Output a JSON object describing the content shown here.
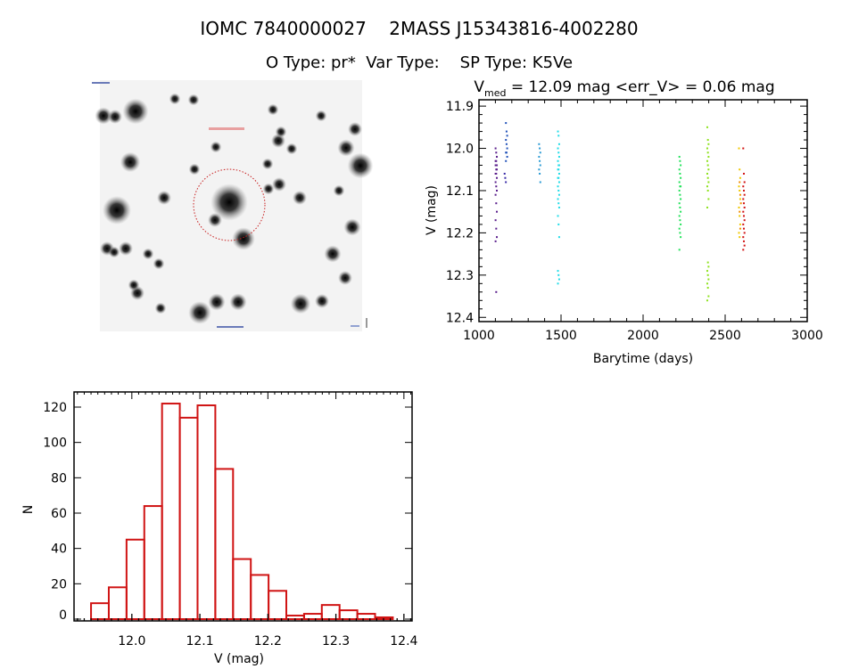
{
  "header": {
    "title": "IOMC 7840000027    2MASS J15343816-4002280",
    "subtitle": "O Type: pr*  Var Type:    SP Type: K5Ve"
  },
  "colors": {
    "histogram": "#d01414",
    "axes": "#000000",
    "image_marker": "#c81e1e"
  },
  "image": {
    "type": "grayscale star field",
    "marker": "dashed red circle around target"
  },
  "chart_data": [
    {
      "type": "scatter",
      "title_main": "V",
      "title_sub": "med",
      "title_rest": " = 12.09 mag <err_V> = 0.06 mag",
      "xlabel": "Barytime (days)",
      "ylabel": "V (mag)",
      "xlim": [
        1000,
        3000
      ],
      "ylim": [
        12.41,
        11.885
      ],
      "y_inverted": true,
      "xticks": [
        "1000",
        "1500",
        "2000",
        "2500",
        "3000"
      ],
      "yticks": [
        "11.9",
        "12.0",
        "12.1",
        "12.2",
        "12.3",
        "12.4"
      ],
      "color_by": "time (rainbow)",
      "groups": [
        {
          "t": 1105,
          "color": "#5a1e8c",
          "v": [
            12.0,
            12.01,
            12.02,
            12.03,
            12.03,
            12.04,
            12.04,
            12.05,
            12.05,
            12.06,
            12.06,
            12.07,
            12.08,
            12.09,
            12.1,
            12.11,
            12.13,
            12.15,
            12.17,
            12.19,
            12.21,
            12.22,
            12.34
          ]
        },
        {
          "t": 1160,
          "color": "#3a2ca8",
          "v": [
            12.06,
            12.07,
            12.08
          ]
        },
        {
          "t": 1168,
          "color": "#1f50b8",
          "v": [
            11.94,
            11.96,
            11.97,
            11.98,
            11.99,
            12.0,
            12.01,
            12.01,
            12.02,
            12.03
          ]
        },
        {
          "t": 1370,
          "color": "#2a9ad4",
          "v": [
            11.99,
            12.0,
            12.01,
            12.02,
            12.03,
            12.04,
            12.05,
            12.06,
            12.08
          ]
        },
        {
          "t": 1485,
          "color": "#22dce8",
          "v": [
            11.96,
            11.97,
            11.99,
            12.0,
            12.01,
            12.02,
            12.03,
            12.04,
            12.04,
            12.05,
            12.05,
            12.06,
            12.07,
            12.07,
            12.08,
            12.09,
            12.1,
            12.11,
            12.12,
            12.13,
            12.14,
            12.16,
            12.18,
            12.21,
            12.29,
            12.3,
            12.31,
            12.32
          ]
        },
        {
          "t": 2225,
          "color": "#22e25a",
          "v": [
            12.02,
            12.03,
            12.04,
            12.05,
            12.06,
            12.07,
            12.08,
            12.09,
            12.09,
            12.1,
            12.11,
            12.12,
            12.13,
            12.14,
            12.15,
            12.16,
            12.17,
            12.18,
            12.19,
            12.2,
            12.21,
            12.24
          ]
        },
        {
          "t": 2395,
          "color": "#8ee21e",
          "v": [
            11.95,
            11.98,
            11.99,
            12.0,
            12.01,
            12.02,
            12.03,
            12.04,
            12.05,
            12.06,
            12.07,
            12.08,
            12.09,
            12.1,
            12.12,
            12.14,
            12.27,
            12.28,
            12.29,
            12.3,
            12.31,
            12.32,
            12.33,
            12.35,
            12.36
          ]
        },
        {
          "t": 2588,
          "color": "#f0c800",
          "v": [
            12.0,
            12.05,
            12.07,
            12.09,
            12.1,
            12.12,
            12.14,
            12.16,
            12.18,
            12.2,
            12.21
          ]
        },
        {
          "t": 2592,
          "color": "#f08c00",
          "v": [
            12.08,
            12.11,
            12.13,
            12.15,
            12.19
          ]
        },
        {
          "t": 2614,
          "color": "#d21414",
          "v": [
            12.0,
            12.06,
            12.08,
            12.09,
            12.1,
            12.11,
            12.12,
            12.13,
            12.14,
            12.15,
            12.16,
            12.17,
            12.18,
            12.19,
            12.2,
            12.21,
            12.22,
            12.23,
            12.24
          ]
        }
      ]
    },
    {
      "type": "bar",
      "subtype": "histogram",
      "xlabel": "V (mag)",
      "ylabel": "N",
      "xlim": [
        11.915,
        12.412
      ],
      "ylim": [
        0,
        128
      ],
      "xticks": [
        "12.0",
        "12.1",
        "12.2",
        "12.3",
        "12.4"
      ],
      "yticks": [
        "0",
        "20",
        "40",
        "60",
        "80",
        "100",
        "120"
      ],
      "bin_start": 11.94,
      "bin_width": 0.0261,
      "values": [
        9,
        18,
        45,
        64,
        122,
        114,
        121,
        85,
        34,
        25,
        16,
        2,
        3,
        8,
        5,
        3,
        1
      ]
    }
  ]
}
